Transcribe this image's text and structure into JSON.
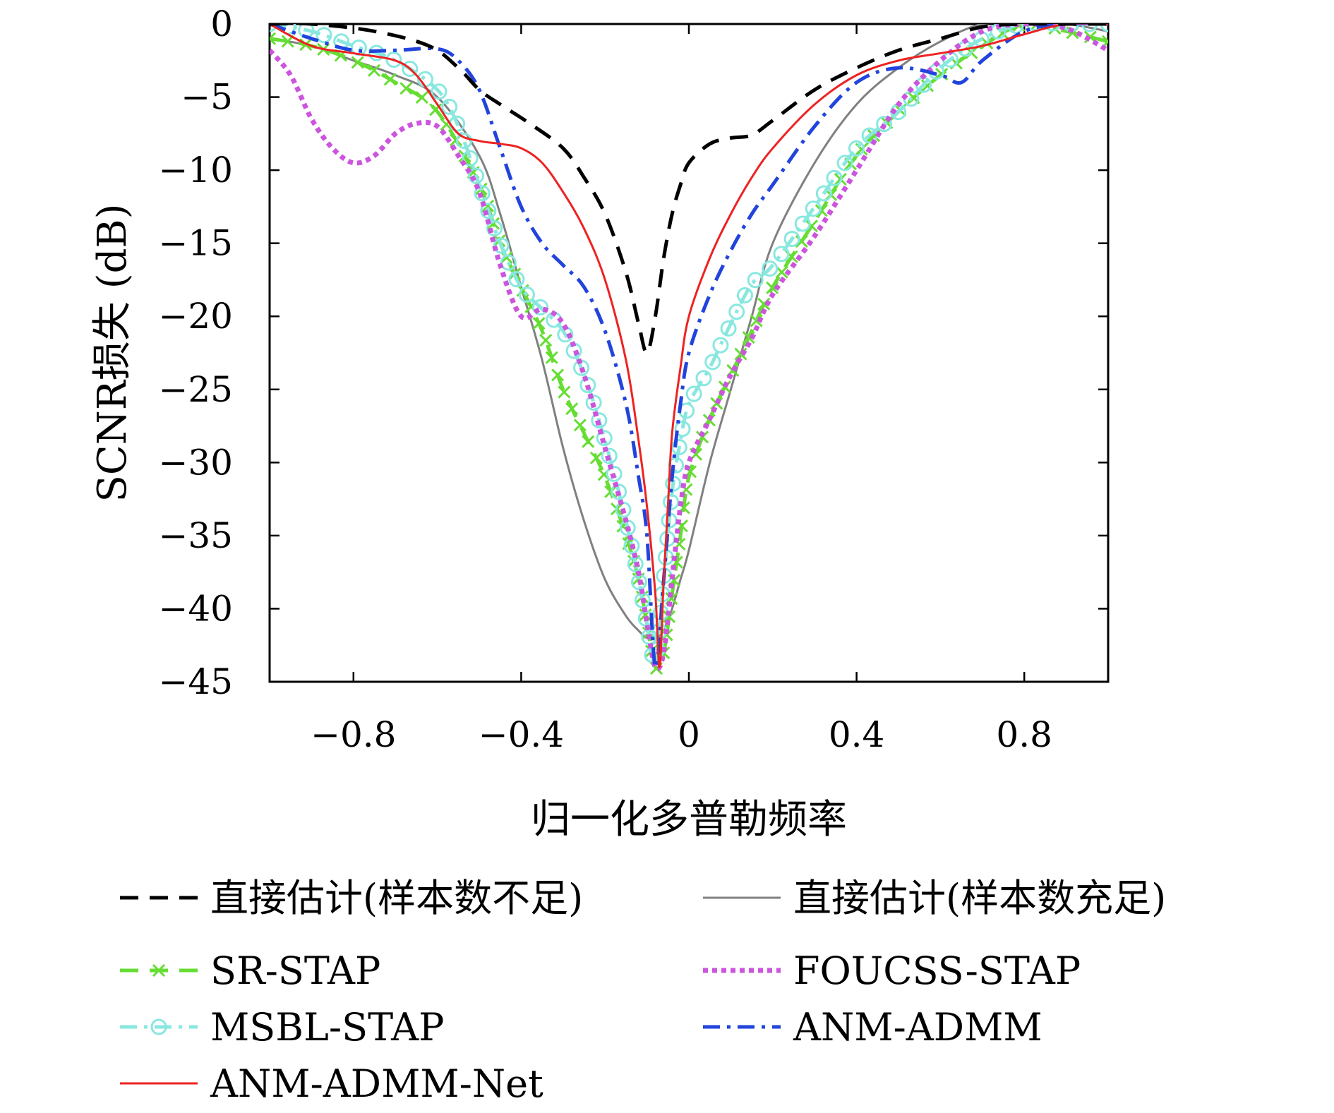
{
  "chart_data": {
    "type": "line",
    "title": "",
    "xlabel": "归一化多普勒频率",
    "ylabel": "SCNR损失 (dB)",
    "xlim": [
      -1,
      1
    ],
    "ylim": [
      -45,
      0
    ],
    "xticks": [
      -0.8,
      -0.4,
      0,
      0.4,
      0.8
    ],
    "xtick_labels": [
      "−0.8",
      "−0.4",
      "0",
      "0.4",
      "0.8"
    ],
    "yticks": [
      0,
      -5,
      -10,
      -15,
      -20,
      -25,
      -30,
      -35,
      -40,
      -45
    ],
    "ytick_labels": [
      "0",
      "−5",
      "−10",
      "−15",
      "−20",
      "−25",
      "−30",
      "−35",
      "−40",
      "−45"
    ],
    "grid": false,
    "legend_position": "below",
    "series": [
      {
        "name": "直接估计(样本数不足)",
        "color": "#000000",
        "style": "dashed",
        "marker": "none",
        "x": [
          -1,
          -0.9,
          -0.75,
          -0.62,
          -0.55,
          -0.5,
          -0.45,
          -0.38,
          -0.3,
          -0.25,
          -0.2,
          -0.15,
          -0.12,
          -0.1,
          -0.08,
          -0.06,
          -0.04,
          -0.02,
          0,
          0.05,
          0.1,
          0.15,
          0.2,
          0.3,
          0.4,
          0.5,
          0.6,
          0.7,
          0.8,
          0.9,
          1
        ],
        "y": [
          0,
          0,
          -0.5,
          -1.5,
          -3,
          -4.5,
          -5.5,
          -6.8,
          -8.5,
          -10.5,
          -13,
          -17,
          -20.5,
          -22.5,
          -20,
          -16,
          -13,
          -11,
          -9.5,
          -8.2,
          -7.8,
          -7.6,
          -6.6,
          -4.5,
          -3,
          -1.8,
          -1,
          -0.2,
          0,
          0,
          0
        ]
      },
      {
        "name": "直接估计(样本数充足)",
        "color": "#808080",
        "style": "solid",
        "marker": "none",
        "x": [
          -1,
          -0.9,
          -0.8,
          -0.7,
          -0.6,
          -0.5,
          -0.45,
          -0.4,
          -0.35,
          -0.3,
          -0.25,
          -0.2,
          -0.15,
          -0.12,
          -0.1,
          -0.08,
          -0.06,
          -0.04,
          -0.02,
          0,
          0.05,
          0.1,
          0.15,
          0.2,
          0.3,
          0.4,
          0.5,
          0.6,
          0.7,
          0.8,
          0.9,
          1
        ],
        "y": [
          -1,
          -1.5,
          -2.5,
          -3.5,
          -5,
          -9,
          -13,
          -18,
          -23,
          -29,
          -34,
          -38,
          -40.5,
          -41.5,
          -42,
          -42,
          -41.5,
          -40,
          -38,
          -36,
          -30,
          -25,
          -20,
          -15,
          -9.5,
          -5.5,
          -3,
          -1.2,
          0,
          0,
          0,
          -0.5
        ]
      },
      {
        "name": "SR-STAP",
        "color": "#66dd33",
        "style": "dashed",
        "marker": "x",
        "x": [
          -1,
          -0.9,
          -0.8,
          -0.7,
          -0.6,
          -0.5,
          -0.45,
          -0.4,
          -0.35,
          -0.3,
          -0.25,
          -0.2,
          -0.15,
          -0.12,
          -0.1,
          -0.08,
          -0.06,
          -0.04,
          -0.02,
          0,
          0.05,
          0.1,
          0.15,
          0.2,
          0.3,
          0.4,
          0.5,
          0.6,
          0.7,
          0.8,
          0.9,
          1
        ],
        "y": [
          -1,
          -1.5,
          -2.5,
          -4,
          -6,
          -11,
          -15,
          -18,
          -21,
          -25,
          -28,
          -31,
          -35,
          -38,
          -41,
          -44,
          -43,
          -39,
          -35,
          -31,
          -27,
          -24,
          -21,
          -18,
          -13.5,
          -9,
          -6,
          -3.5,
          -1.5,
          0,
          -0.5,
          -1.2
        ]
      },
      {
        "name": "FOUCSS-STAP",
        "color": "#cc55dd",
        "style": "dotted",
        "marker": "none",
        "x": [
          -1,
          -0.95,
          -0.9,
          -0.85,
          -0.8,
          -0.75,
          -0.7,
          -0.65,
          -0.6,
          -0.55,
          -0.5,
          -0.45,
          -0.4,
          -0.35,
          -0.3,
          -0.25,
          -0.2,
          -0.15,
          -0.12,
          -0.1,
          -0.08,
          -0.06,
          -0.04,
          -0.02,
          0,
          0.05,
          0.1,
          0.15,
          0.2,
          0.3,
          0.4,
          0.5,
          0.6,
          0.7,
          0.8,
          0.9,
          1
        ],
        "y": [
          -1.8,
          -3.5,
          -6.5,
          -8.5,
          -9.5,
          -9,
          -7.5,
          -6.8,
          -7,
          -9,
          -11.5,
          -16.5,
          -20,
          -19.5,
          -20.5,
          -24,
          -29,
          -34,
          -37.5,
          -41,
          -44,
          -43,
          -38,
          -33,
          -30,
          -27,
          -24,
          -21.5,
          -18.5,
          -14.5,
          -10,
          -5.5,
          -2.5,
          -0.5,
          0,
          -0.3,
          -1.8
        ]
      },
      {
        "name": "MSBL-STAP",
        "color": "#88e8e0",
        "style": "dashdot",
        "marker": "o",
        "x": [
          -1,
          -0.9,
          -0.8,
          -0.7,
          -0.6,
          -0.55,
          -0.5,
          -0.45,
          -0.4,
          -0.35,
          -0.3,
          -0.25,
          -0.2,
          -0.15,
          -0.12,
          -0.1,
          -0.08,
          -0.06,
          -0.04,
          -0.02,
          0,
          0.05,
          0.1,
          0.15,
          0.2,
          0.3,
          0.4,
          0.5,
          0.6,
          0.7,
          0.8,
          0.9,
          1
        ],
        "y": [
          0,
          -0.5,
          -1.5,
          -2.5,
          -4.5,
          -7,
          -11,
          -15,
          -18,
          -19.5,
          -21,
          -24,
          -28.5,
          -34,
          -38,
          -41,
          -43.5,
          -38,
          -32,
          -28.5,
          -26,
          -23.5,
          -20.5,
          -17.8,
          -16.5,
          -12.5,
          -8.5,
          -6,
          -3,
          -1,
          0,
          0,
          0
        ]
      },
      {
        "name": "ANM-ADMM",
        "color": "#2244dd",
        "style": "dashdot",
        "marker": "none",
        "x": [
          -1,
          -0.9,
          -0.8,
          -0.7,
          -0.6,
          -0.55,
          -0.5,
          -0.45,
          -0.4,
          -0.35,
          -0.3,
          -0.25,
          -0.2,
          -0.15,
          -0.12,
          -0.1,
          -0.08,
          -0.06,
          -0.04,
          -0.02,
          0,
          0.05,
          0.1,
          0.15,
          0.2,
          0.3,
          0.4,
          0.5,
          0.6,
          0.65,
          0.7,
          0.8,
          0.9,
          1
        ],
        "y": [
          0,
          -1,
          -1.8,
          -1.8,
          -1.7,
          -2.5,
          -4.5,
          -8.5,
          -12.5,
          -15,
          -16.5,
          -18,
          -21,
          -26,
          -31,
          -35,
          -44,
          -38,
          -31,
          -26,
          -22.5,
          -18.5,
          -15.5,
          -13,
          -11,
          -7,
          -4,
          -3,
          -3.5,
          -4,
          -2.5,
          -0.5,
          0,
          0
        ]
      },
      {
        "name": "ANM-ADMM-Net",
        "color": "#ee2222",
        "style": "solid",
        "marker": "none",
        "x": [
          -1,
          -0.9,
          -0.8,
          -0.7,
          -0.65,
          -0.6,
          -0.55,
          -0.5,
          -0.45,
          -0.4,
          -0.35,
          -0.3,
          -0.25,
          -0.2,
          -0.15,
          -0.12,
          -0.1,
          -0.08,
          -0.07,
          -0.06,
          -0.05,
          -0.04,
          -0.02,
          0,
          0.05,
          0.1,
          0.15,
          0.2,
          0.3,
          0.4,
          0.5,
          0.6,
          0.7,
          0.8,
          0.9,
          1
        ],
        "y": [
          0,
          -1.5,
          -2,
          -2.5,
          -3.5,
          -5.5,
          -7.5,
          -8,
          -8.2,
          -8.5,
          -9.5,
          -11.5,
          -14,
          -17.5,
          -23,
          -28.5,
          -33,
          -39,
          -44,
          -38,
          -33,
          -28,
          -23.5,
          -20,
          -16,
          -13,
          -10.5,
          -8.5,
          -5.5,
          -3.5,
          -2.5,
          -2,
          -1.5,
          -0.7,
          0,
          0
        ]
      }
    ]
  }
}
